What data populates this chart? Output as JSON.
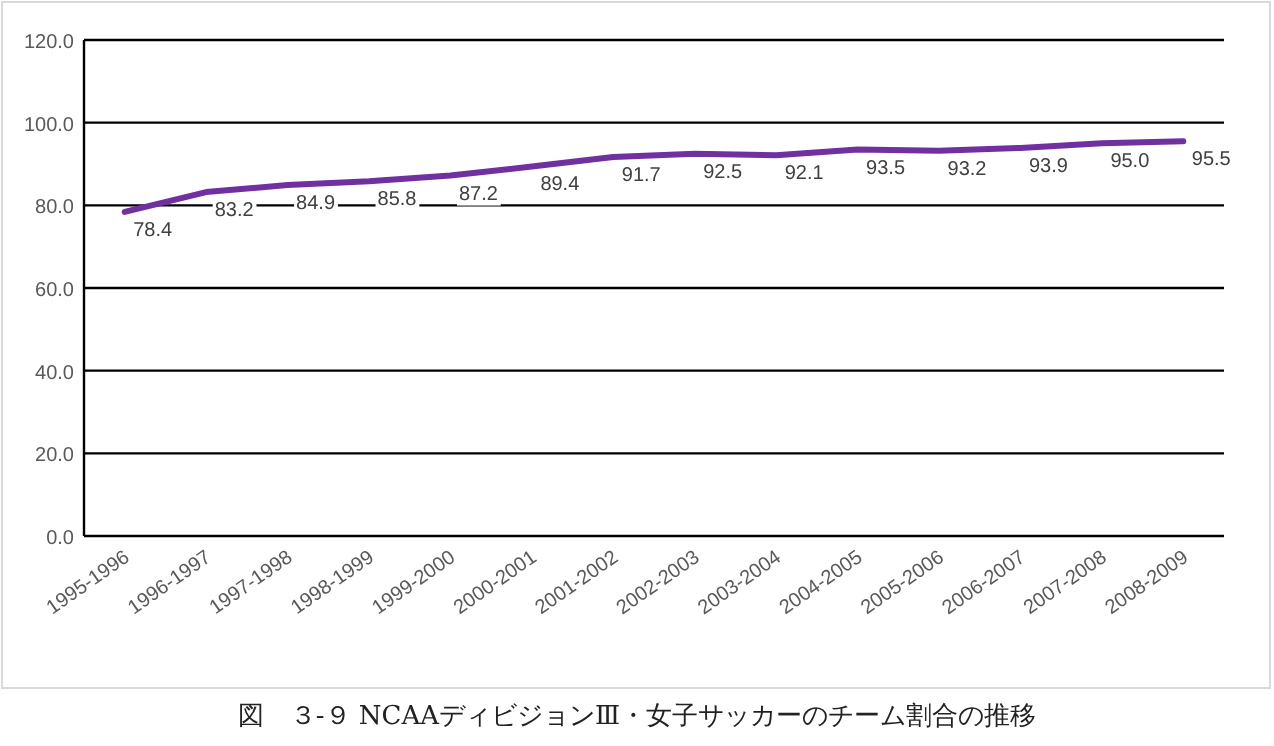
{
  "chart_data": {
    "type": "line",
    "categories": [
      "1995-1996",
      "1996-1997",
      "1997-1998",
      "1998-1999",
      "1999-2000",
      "2000-2001",
      "2001-2002",
      "2002-2003",
      "2003-2004",
      "2004-2005",
      "2005-2006",
      "2006-2007",
      "2007-2008",
      "2008-2009"
    ],
    "series": [
      {
        "color": "#7030a0",
        "values": [
          78.4,
          83.2,
          84.9,
          85.8,
          87.2,
          89.4,
          91.7,
          92.5,
          92.1,
          93.5,
          93.2,
          93.9,
          95.0,
          95.5
        ]
      }
    ],
    "value_labels": [
      "78.4",
      "83.2",
      "84.9",
      "85.8",
      "87.2",
      "89.4",
      "91.7",
      "92.5",
      "92.1",
      "93.5",
      "93.2",
      "93.9",
      "95.0",
      "95.5"
    ],
    "ylim": [
      0,
      120
    ],
    "yticks": [
      {
        "value": 0,
        "label": "0.0"
      },
      {
        "value": 20,
        "label": "20.0"
      },
      {
        "value": 40,
        "label": "40.0"
      },
      {
        "value": 60,
        "label": "60.0"
      },
      {
        "value": 80,
        "label": "80.0"
      },
      {
        "value": 100,
        "label": "100.0"
      },
      {
        "value": 120,
        "label": "120.0"
      }
    ],
    "grid": "y",
    "marker": "none",
    "line_style": "solid",
    "annotations": [
      "図　３-９ NCAAディビジョンⅢ・女子サッカーのチーム割合の推移"
    ]
  }
}
